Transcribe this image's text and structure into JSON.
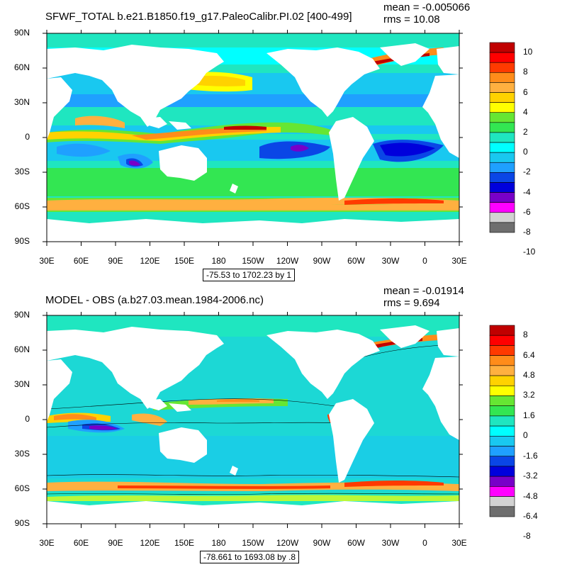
{
  "x_ticks": [
    "30E",
    "60E",
    "90E",
    "120E",
    "150E",
    "180",
    "150W",
    "120W",
    "90W",
    "60W",
    "30W",
    "0",
    "30E"
  ],
  "y_ticks": [
    "90N",
    "60N",
    "30N",
    "0",
    "30S",
    "60S",
    "90S"
  ],
  "colors": {
    "ocean_base": "#1FE6C0",
    "land": "#ffffff",
    "frame": "#000000"
  },
  "panels": [
    {
      "title": "SFWF_TOTAL b.e21.B1850.f19_g17.PaleoCalibr.PI.02 [400-499]",
      "mean": "mean = -0.005066",
      "rms": "rms = 10.08",
      "range_note": "-75.53 to 1702.23 by 1",
      "colorbar": {
        "colors": [
          "#C00000",
          "#FF0000",
          "#FF3A00",
          "#FF8C1A",
          "#FFB040",
          "#FFD200",
          "#FFFF00",
          "#66E633",
          "#33E652",
          "#1FE6C0",
          "#00FFFF",
          "#19C8F0",
          "#1FA0FF",
          "#0A46E6",
          "#0000DC",
          "#7800C8",
          "#FF00FF",
          "#D2D2D2",
          "#6E6E6E"
        ],
        "labels": [
          "10",
          "8",
          "6",
          "4",
          "2",
          "0",
          "-2",
          "-4",
          "-6",
          "-8",
          "-10"
        ]
      }
    },
    {
      "title": "MODEL - OBS (a.b27.03.mean.1984-2006.nc)",
      "mean": "mean = -0.01914",
      "rms": "rms = 9.694",
      "range_note": "-78.661 to 1693.08 by .8",
      "colorbar": {
        "colors": [
          "#C00000",
          "#FF0000",
          "#FF3A00",
          "#FF8C1A",
          "#FFB040",
          "#FFD200",
          "#FFFF00",
          "#66E633",
          "#33E652",
          "#1FE6C0",
          "#00FFFF",
          "#19C8F0",
          "#1FA0FF",
          "#0A46E6",
          "#0000DC",
          "#7800C8",
          "#FF00FF",
          "#D2D2D2",
          "#6E6E6E"
        ],
        "labels": [
          "8",
          "6.4",
          "4.8",
          "3.2",
          "1.6",
          "0",
          "-1.6",
          "-3.2",
          "-4.8",
          "-6.4",
          "-8"
        ]
      }
    }
  ]
}
